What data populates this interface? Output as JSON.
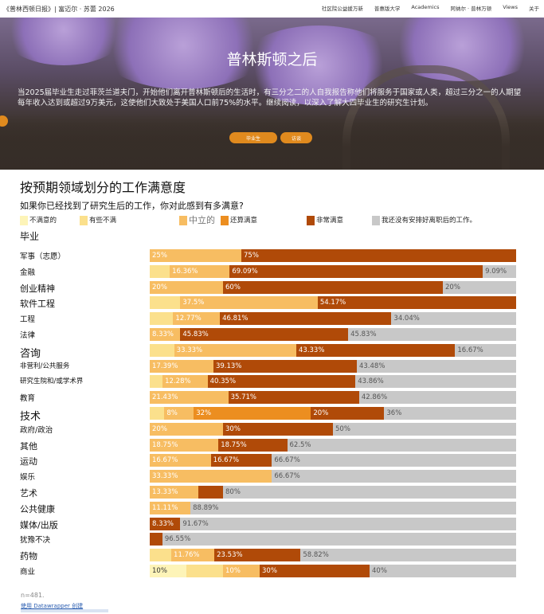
{
  "topbar": {
    "site": "《普林西顿日报》| 富迈尔 · 苏蕾 2026",
    "nav": [
      "社区院公益援万新",
      "普惠版大学",
      "Academics",
      "阿纳尔 · 普林万顿",
      "Views",
      "关于"
    ]
  },
  "hero": {
    "title": "普林斯顿之后",
    "intro": "当2025届毕业生走过菲茨兰道夫门，开始他们离开普林斯顿后的生活时，有三分之二的人自我报告称他们将服务于国家或人类，超过三分之一的人期望每年收入达到或超过9万美元，这使他们大致处于美国人口前75%的水平。继续阅读，以深入了解大四毕业生的研究生计划。",
    "button1": "毕业生",
    "button2": "访谈"
  },
  "colors": {
    "very_dissatisfied": "#fdf4b8",
    "somewhat_dissatisfied": "#fbe08c",
    "neutral": "#f7bd62",
    "somewhat_satisfied": "#ec8e20",
    "very_satisfied": "#b04a08",
    "no_plans": "#c8c8c8"
  },
  "chart_data": {
    "type": "bar",
    "orientation": "horizontal-stacked-100",
    "title": "按预期领域划分的工作满意度",
    "subtitle": "如果你已经找到了研究生后的工作，你对此感到有多满意?",
    "category_header": "毕业",
    "legend": [
      "不满意的",
      "有些不满",
      "中立的",
      "还算满意",
      "非常满意",
      "我还没有安排好离职后的工作。"
    ],
    "categories": [
      "军事（志愿）",
      "金融",
      "创业精神",
      "软件工程",
      "工程",
      "法律",
      "咨询",
      "非营利/公共服务",
      "研究生院和/或学术界",
      "教育",
      "技术",
      "政府/政治",
      "其他",
      "运动",
      "娱乐",
      "艺术",
      "公共健康",
      "媒体/出版",
      "犹豫不决",
      "药物",
      "商业"
    ],
    "series": [
      {
        "name": "不满意的",
        "values": [
          0,
          0,
          0,
          0,
          0,
          0,
          0,
          0,
          0,
          0,
          0,
          0,
          0,
          0,
          0,
          0,
          0,
          0,
          0,
          0,
          10
        ]
      },
      {
        "name": "有些不满",
        "values": [
          0,
          5.45,
          0,
          8.33,
          6.38,
          0,
          6.67,
          0,
          3.51,
          0,
          4,
          0,
          0,
          0,
          0,
          0,
          0,
          0,
          0,
          5.88,
          10
        ]
      },
      {
        "name": "中立的",
        "values": [
          25,
          16.36,
          20,
          37.5,
          12.77,
          8.33,
          33.33,
          17.39,
          12.28,
          21.43,
          8,
          20,
          18.75,
          16.67,
          33.33,
          13.33,
          11.11,
          0,
          0,
          11.76,
          10
        ]
      },
      {
        "name": "还算满意",
        "values": [
          0,
          0,
          0,
          0,
          0,
          0,
          0,
          0,
          0,
          0,
          32,
          0,
          0,
          0,
          0,
          0,
          0,
          0,
          0,
          0,
          0
        ]
      },
      {
        "name": "非常满意",
        "values": [
          75,
          69.09,
          60,
          54.17,
          46.81,
          45.83,
          43.33,
          39.13,
          40.35,
          35.71,
          20,
          30,
          18.75,
          16.67,
          0,
          6.67,
          0,
          8.33,
          3.45,
          23.53,
          30
        ]
      },
      {
        "name": "我还没有安排好离职后的工作。",
        "values": [
          0,
          9.09,
          20,
          0,
          34.04,
          45.83,
          16.67,
          43.48,
          43.86,
          42.86,
          36,
          50,
          62.5,
          66.67,
          66.67,
          80,
          88.89,
          91.67,
          96.55,
          58.82,
          40
        ]
      }
    ],
    "xlim": [
      0,
      100
    ],
    "note": "n=481."
  },
  "footer": {
    "source": "使用 Datawrapper 创建"
  }
}
